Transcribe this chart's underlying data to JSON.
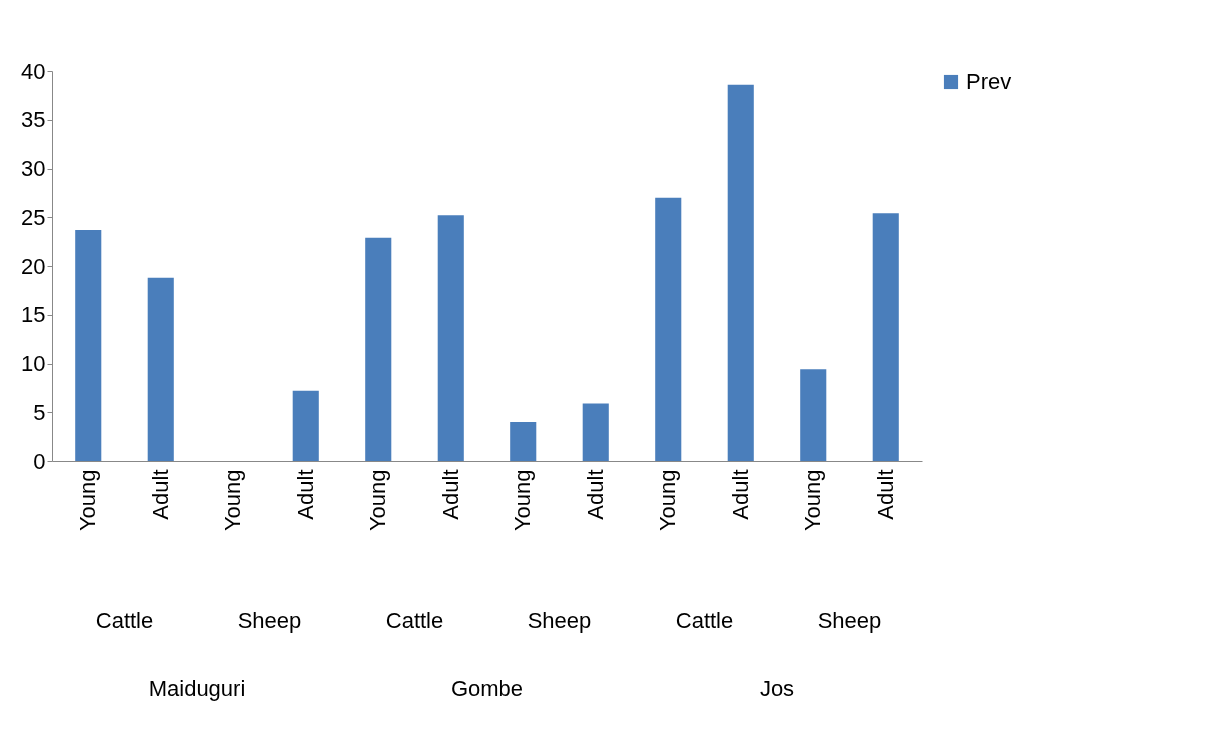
{
  "chart_data": {
    "type": "bar",
    "categories": [
      "Young",
      "Adult",
      "Young",
      "Adult",
      "Young",
      "Adult",
      "Young",
      "Adult",
      "Young",
      "Adult",
      "Young",
      "Adult"
    ],
    "series": [
      {
        "name": "Prev",
        "color": "#4a7ebb",
        "values": [
          23.7,
          18.8,
          0,
          7.2,
          22.9,
          25.2,
          4.0,
          5.9,
          27.0,
          38.6,
          9.4,
          25.4
        ]
      }
    ],
    "annotations": [
      "Cattle",
      "Sheep",
      "Cattle",
      "Sheep",
      "Cattle",
      "Sheep",
      "Maiduguri",
      "Gombe",
      "Jos"
    ],
    "ylim": [
      0,
      40
    ],
    "yticks": [
      0,
      5,
      10,
      15,
      20,
      25,
      30,
      35,
      40
    ],
    "grid": false,
    "legend": "right"
  }
}
